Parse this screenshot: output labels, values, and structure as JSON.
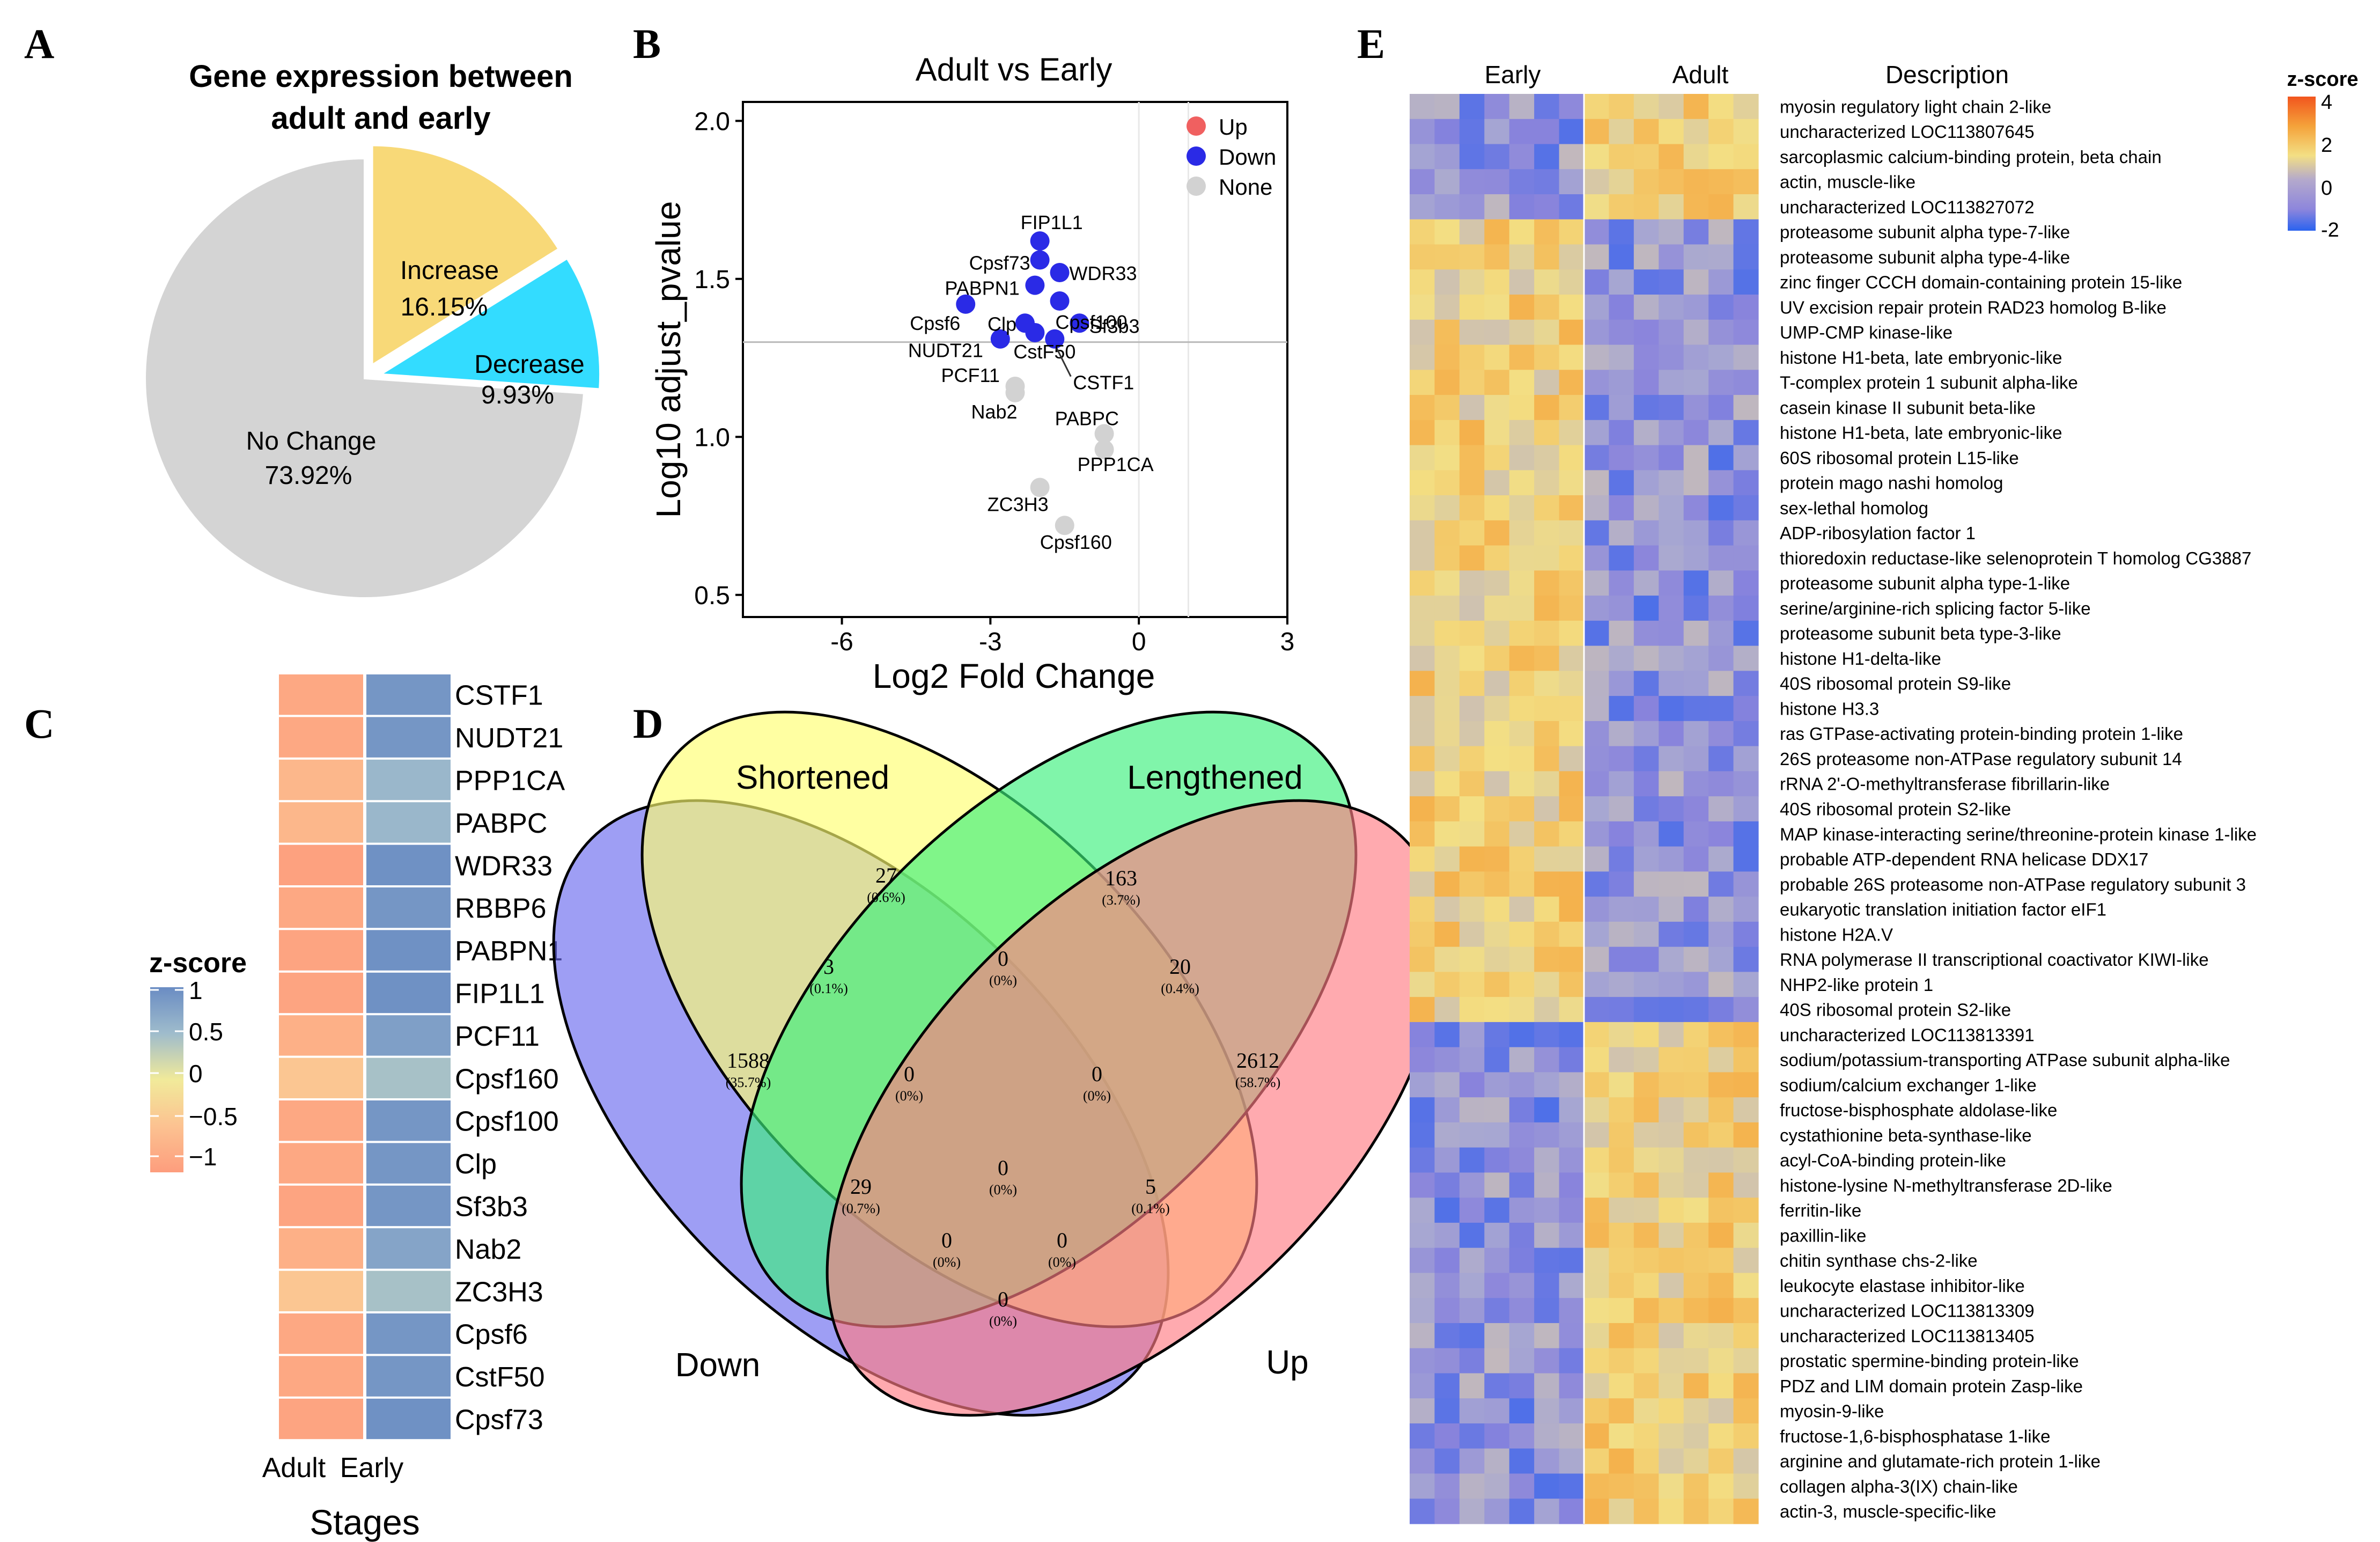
{
  "panel_letters": [
    "A",
    "B",
    "C",
    "D",
    "E"
  ],
  "colors": {
    "pie_nochange": "#d4d4d4",
    "pie_increase": "#f8d978",
    "pie_decrease": "#33dcff",
    "volcano_up": "#f06060",
    "volcano_down": "#2a2ae6",
    "volcano_none": "#d2d2d2",
    "venn_down": "#6a6aee",
    "venn_short": "#ffff70",
    "venn_long": "#3cf07c",
    "venn_up": "#ff7c84"
  },
  "chart_data": [
    {
      "panel": "A",
      "type": "pie",
      "title_lines": [
        "Gene expression between",
        "adult and early"
      ],
      "slices": [
        {
          "name": "Increase",
          "value": 16.15,
          "label": "16.15%",
          "color": "#f8d978"
        },
        {
          "name": "Decrease",
          "value": 9.93,
          "label": "9.93%",
          "color": "#33dcff"
        },
        {
          "name": "No Change",
          "value": 73.92,
          "label": "73.92%",
          "color": "#d4d4d4"
        }
      ]
    },
    {
      "panel": "B",
      "type": "scatter",
      "title": "Adult vs Early",
      "xlabel": "Log2 Fold Change",
      "ylabel": "Log10 adjust_pvalue",
      "xlim": [
        -8,
        3
      ],
      "ylim": [
        0.43,
        2.06
      ],
      "xticks": [
        -6,
        -3,
        0,
        3
      ],
      "yticks": [
        0.5,
        1.0,
        1.5,
        2.0
      ],
      "ytick_labels": [
        "0.5",
        "1.0",
        "1.5",
        "2.0"
      ],
      "threshold_y": 1.3,
      "legend": [
        {
          "name": "Up",
          "color": "#f06060"
        },
        {
          "name": "Down",
          "color": "#2a2ae6"
        },
        {
          "name": "None",
          "color": "#d2d2d2"
        }
      ],
      "points": [
        {
          "gene": "FIP1L1",
          "x": -2.0,
          "y": 1.62,
          "status": "Down"
        },
        {
          "gene": "Cpsf73",
          "x": -2.0,
          "y": 1.56,
          "status": "Down"
        },
        {
          "gene": "WDR33",
          "x": -1.6,
          "y": 1.52,
          "status": "Down"
        },
        {
          "gene": "PABPN1",
          "x": -2.1,
          "y": 1.48,
          "status": "Down"
        },
        {
          "gene": "Cpsf100",
          "x": -1.6,
          "y": 1.43,
          "status": "Down"
        },
        {
          "gene": "Cpsf6",
          "x": -3.5,
          "y": 1.42,
          "status": "Down"
        },
        {
          "gene": "Sf3b3",
          "x": -1.2,
          "y": 1.36,
          "status": "Down"
        },
        {
          "gene": "Clp",
          "x": -2.3,
          "y": 1.36,
          "status": "Down"
        },
        {
          "gene": "CstF50",
          "x": -2.1,
          "y": 1.33,
          "status": "Down"
        },
        {
          "gene": "NUDT21",
          "x": -2.8,
          "y": 1.31,
          "status": "Down"
        },
        {
          "gene": "CSTF1",
          "x": -1.7,
          "y": 1.31,
          "status": "Down"
        },
        {
          "gene": "PCF11",
          "x": -2.5,
          "y": 1.16,
          "status": "None"
        },
        {
          "gene": "Nab2",
          "x": -2.5,
          "y": 1.14,
          "status": "None"
        },
        {
          "gene": "PABPC",
          "x": -0.7,
          "y": 1.01,
          "status": "None"
        },
        {
          "gene": "PPP1CA",
          "x": -0.7,
          "y": 0.96,
          "status": "None"
        },
        {
          "gene": "ZC3H3",
          "x": -2.0,
          "y": 0.84,
          "status": "None"
        },
        {
          "gene": "Cpsf160",
          "x": -1.5,
          "y": 0.72,
          "status": "None"
        }
      ]
    },
    {
      "panel": "C",
      "type": "heatmap",
      "xlabel": "Stages",
      "columns": [
        "Adult",
        "Early"
      ],
      "legend_title": "z-score",
      "legend_ticks": [
        "1",
        "0.5",
        "0",
        "−0.5",
        "−1"
      ],
      "rows": [
        {
          "gene": "CSTF1",
          "values": [
            -0.85,
            0.9
          ]
        },
        {
          "gene": "NUDT21",
          "values": [
            -0.85,
            0.9
          ]
        },
        {
          "gene": "PPP1CA",
          "values": [
            -0.65,
            0.55
          ]
        },
        {
          "gene": "PABPC",
          "values": [
            -0.65,
            0.55
          ]
        },
        {
          "gene": "WDR33",
          "values": [
            -0.95,
            0.95
          ]
        },
        {
          "gene": "RBBP6",
          "values": [
            -0.85,
            0.9
          ]
        },
        {
          "gene": "PABPN1",
          "values": [
            -0.9,
            0.95
          ]
        },
        {
          "gene": "FIP1L1",
          "values": [
            -0.9,
            0.95
          ]
        },
        {
          "gene": "PCF11",
          "values": [
            -0.75,
            0.8
          ]
        },
        {
          "gene": "Cpsf160",
          "values": [
            -0.45,
            0.45
          ]
        },
        {
          "gene": "Cpsf100",
          "values": [
            -0.85,
            0.9
          ]
        },
        {
          "gene": "Clp",
          "values": [
            -0.85,
            0.9
          ]
        },
        {
          "gene": "Sf3b3",
          "values": [
            -0.9,
            0.9
          ]
        },
        {
          "gene": "Nab2",
          "values": [
            -0.75,
            0.75
          ]
        },
        {
          "gene": "ZC3H3",
          "values": [
            -0.45,
            0.45
          ]
        },
        {
          "gene": "Cpsf6",
          "values": [
            -0.85,
            0.9
          ]
        },
        {
          "gene": "CstF50",
          "values": [
            -0.85,
            0.9
          ]
        },
        {
          "gene": "Cpsf73",
          "values": [
            -0.9,
            0.95
          ]
        }
      ]
    },
    {
      "panel": "D",
      "type": "venn",
      "sets": [
        "Shortened",
        "Lengthened",
        "Down",
        "Up"
      ],
      "regions": [
        {
          "id": "only_down",
          "value": "1588",
          "pct": "(35.7%)"
        },
        {
          "id": "only_short",
          "value": "27",
          "pct": "(0.6%)"
        },
        {
          "id": "only_long",
          "value": "163",
          "pct": "(3.7%)"
        },
        {
          "id": "only_up",
          "value": "2612",
          "pct": "(58.7%)"
        },
        {
          "id": "down_short",
          "value": "3",
          "pct": "(0.1%)"
        },
        {
          "id": "short_long",
          "value": "0",
          "pct": "(0%)"
        },
        {
          "id": "long_up",
          "value": "20",
          "pct": "(0.4%)"
        },
        {
          "id": "down_short_long",
          "value": "0",
          "pct": "(0%)"
        },
        {
          "id": "short_long_up",
          "value": "0",
          "pct": "(0%)"
        },
        {
          "id": "down_long",
          "value": "29",
          "pct": "(0.7%)"
        },
        {
          "id": "all_four",
          "value": "0",
          "pct": "(0%)"
        },
        {
          "id": "short_up",
          "value": "5",
          "pct": "(0.1%)"
        },
        {
          "id": "down_long_up",
          "value": "0",
          "pct": "(0%)"
        },
        {
          "id": "down_short_up",
          "value": "0",
          "pct": "(0%)"
        },
        {
          "id": "down_up",
          "value": "0",
          "pct": "(0%)"
        }
      ]
    },
    {
      "panel": "E",
      "type": "heatmap",
      "column_groups": [
        "Early",
        "Adult"
      ],
      "description_header": "Description",
      "n_cols": 14,
      "legend_title": "z-score",
      "legend_ticks": [
        "4",
        "2",
        "0",
        "-2"
      ],
      "rows": [
        "myosin regulatory light chain 2-like",
        "uncharacterized LOC113807645",
        "sarcoplasmic calcium-binding protein, beta chain",
        "actin, muscle-like",
        "uncharacterized LOC113827072",
        "proteasome subunit alpha type-7-like",
        "proteasome subunit alpha type-4-like",
        "zinc finger CCCH domain-containing protein 15-like",
        "UV excision repair protein RAD23 homolog B-like",
        "UMP-CMP kinase-like",
        "histone H1-beta, late embryonic-like",
        "T-complex protein 1 subunit alpha-like",
        "casein kinase II subunit beta-like",
        "histone H1-beta, late embryonic-like",
        "60S ribosomal protein L15-like",
        "protein mago nashi homolog",
        "sex-lethal homolog",
        "ADP-ribosylation factor 1",
        "thioredoxin reductase-like selenoprotein T homolog CG3887",
        "proteasome subunit alpha type-1-like",
        "serine/arginine-rich splicing factor 5-like",
        "proteasome subunit beta type-3-like",
        "histone H1-delta-like",
        "40S ribosomal protein S9-like",
        "histone H3.3",
        "ras GTPase-activating protein-binding protein 1-like",
        "26S proteasome non-ATPase regulatory subunit 14",
        "rRNA 2'-O-methyltransferase fibrillarin-like",
        "40S ribosomal protein S2-like",
        "MAP kinase-interacting serine/threonine-protein kinase 1-like",
        "probable ATP-dependent RNA helicase DDX17",
        "probable 26S proteasome non-ATPase regulatory subunit 3",
        "eukaryotic translation initiation factor eIF1",
        "histone H2A.V",
        "RNA polymerase II transcriptional coactivator KIWI-like",
        "NHP2-like protein 1",
        "40S ribosomal protein S2-like",
        "uncharacterized LOC113813391",
        "sodium/potassium-transporting ATPase subunit alpha-like",
        "sodium/calcium exchanger 1-like",
        "fructose-bisphosphate aldolase-like",
        "cystathionine beta-synthase-like",
        "acyl-CoA-binding protein-like",
        "histone-lysine N-methyltransferase 2D-like",
        "ferritin-like",
        "paxillin-like",
        "chitin synthase chs-2-like",
        "leukocyte elastase inhibitor-like",
        "uncharacterized LOC113813309",
        "uncharacterized LOC113813405",
        "prostatic spermine-binding protein-like",
        "PDZ and LIM domain protein Zasp-like",
        "myosin-9-like",
        "fructose-1,6-bisphosphatase 1-like",
        "arginine and glutamate-rich protein 1-like",
        "collagen alpha-3(IX) chain-like",
        "actin-3, muscle-specific-like"
      ],
      "row_trends": [
        -1,
        -1,
        -1,
        -1,
        -1,
        1,
        1,
        1,
        1,
        1,
        1,
        1,
        1,
        1,
        1,
        1,
        1,
        1,
        1,
        1,
        1,
        1,
        1,
        1,
        1,
        1,
        1,
        1,
        1,
        1,
        1,
        1,
        1,
        1,
        1,
        1,
        1,
        -1,
        -1,
        -1,
        -1,
        -1,
        -1,
        -1,
        -1,
        -1,
        -1,
        -1,
        -1,
        -1,
        -1,
        -1,
        -1,
        -1,
        -1,
        -1,
        -1
      ]
    }
  ]
}
